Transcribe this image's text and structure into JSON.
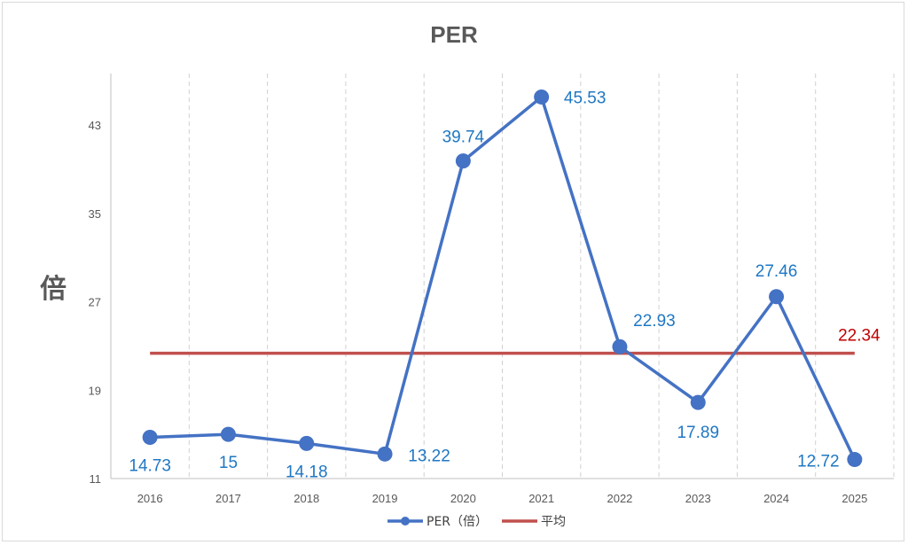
{
  "chart_data": {
    "type": "line",
    "title": "PER",
    "ylabel": "倍",
    "xlabel": "",
    "categories": [
      "2016",
      "2017",
      "2018",
      "2019",
      "2020",
      "2021",
      "2022",
      "2023",
      "2024",
      "2025"
    ],
    "series": [
      {
        "name": "PER（倍）",
        "values": [
          14.73,
          15,
          14.18,
          13.22,
          39.74,
          45.53,
          22.93,
          17.89,
          27.46,
          12.72
        ],
        "labels": [
          "14.73",
          "15",
          "14.18",
          "13.22",
          "39.74",
          "45.53",
          "22.93",
          "17.89",
          "27.46",
          "12.72"
        ],
        "color": "#4472c4",
        "label_color": "#1f77c4"
      },
      {
        "name": "平均",
        "value": 22.34,
        "label": "22.34",
        "color": "#c0504d",
        "label_color": "#c00000"
      }
    ],
    "ylim": [
      11,
      43
    ],
    "yticks": [
      11,
      19,
      27,
      35,
      43
    ],
    "ytick_labels": [
      "11",
      "19",
      "27",
      "35",
      "43"
    ],
    "grid": {
      "vertical_dashed": true,
      "horizontal": false
    },
    "legend": "bottom-center"
  }
}
